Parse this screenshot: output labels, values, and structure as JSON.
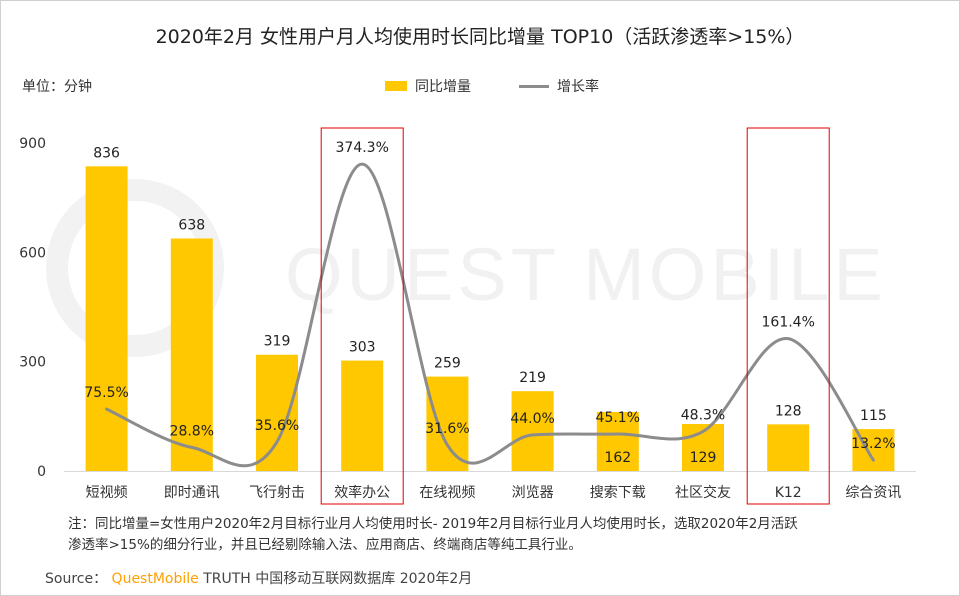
{
  "title": "2020年2月 女性用户月人均使用时长同比增量 TOP10（活跃渗透率>15%）",
  "unit_label": "单位：分钟",
  "watermark": "QUEST MOBILE",
  "chart_data": {
    "type": "bar+line",
    "title": "2020年2月 女性用户月人均使用时长同比增量 TOP10（活跃渗透率>15%）",
    "categories": [
      "短视频",
      "即时通讯",
      "飞行射击",
      "效率办公",
      "在线视频",
      "浏览器",
      "搜索下载",
      "社区交友",
      "K12",
      "综合资讯"
    ],
    "series": [
      {
        "name": "同比增量",
        "type": "bar",
        "color": "#FFC800",
        "values": [
          836,
          638,
          319,
          303,
          259,
          219,
          162,
          129,
          128,
          115
        ],
        "labels": [
          "836",
          "638",
          "319",
          "303",
          "259",
          "219",
          "162",
          "129",
          "128",
          "115"
        ]
      },
      {
        "name": "增长率",
        "type": "line",
        "color": "#8c8c8c",
        "smooth": true,
        "values": [
          75.5,
          28.8,
          35.6,
          374.3,
          31.6,
          44.0,
          45.1,
          48.3,
          161.4,
          13.2
        ],
        "labels": [
          "75.5%",
          "28.8%",
          "35.6%",
          "374.3%",
          "31.6%",
          "44.0%",
          "45.1%",
          "48.3%",
          "161.4%",
          "13.2%"
        ]
      }
    ],
    "ylim": [
      0,
      900
    ],
    "yticks": [
      "0",
      "300",
      "600",
      "900"
    ],
    "y2lim": [
      0,
      400
    ],
    "highlighted_categories": [
      "效率办公",
      "K12"
    ],
    "highlight_color": "#E00000",
    "legend_placement": "top-center",
    "grid": false
  },
  "note_line1": "注：同比增量=女性用户2020年2月目标行业月人均使用时长- 2019年2月目标行业月人均使用时长，选取2020年2月活跃",
  "note_line2": "渗透率>15%的细分行业，并且已经剔除输入法、应用商店、终端商店等纯工具行业。",
  "source": {
    "prefix": "Source：",
    "brand": "QuestMobile",
    "rest": "TRUTH 中国移动互联网数据库 2020年2月"
  }
}
